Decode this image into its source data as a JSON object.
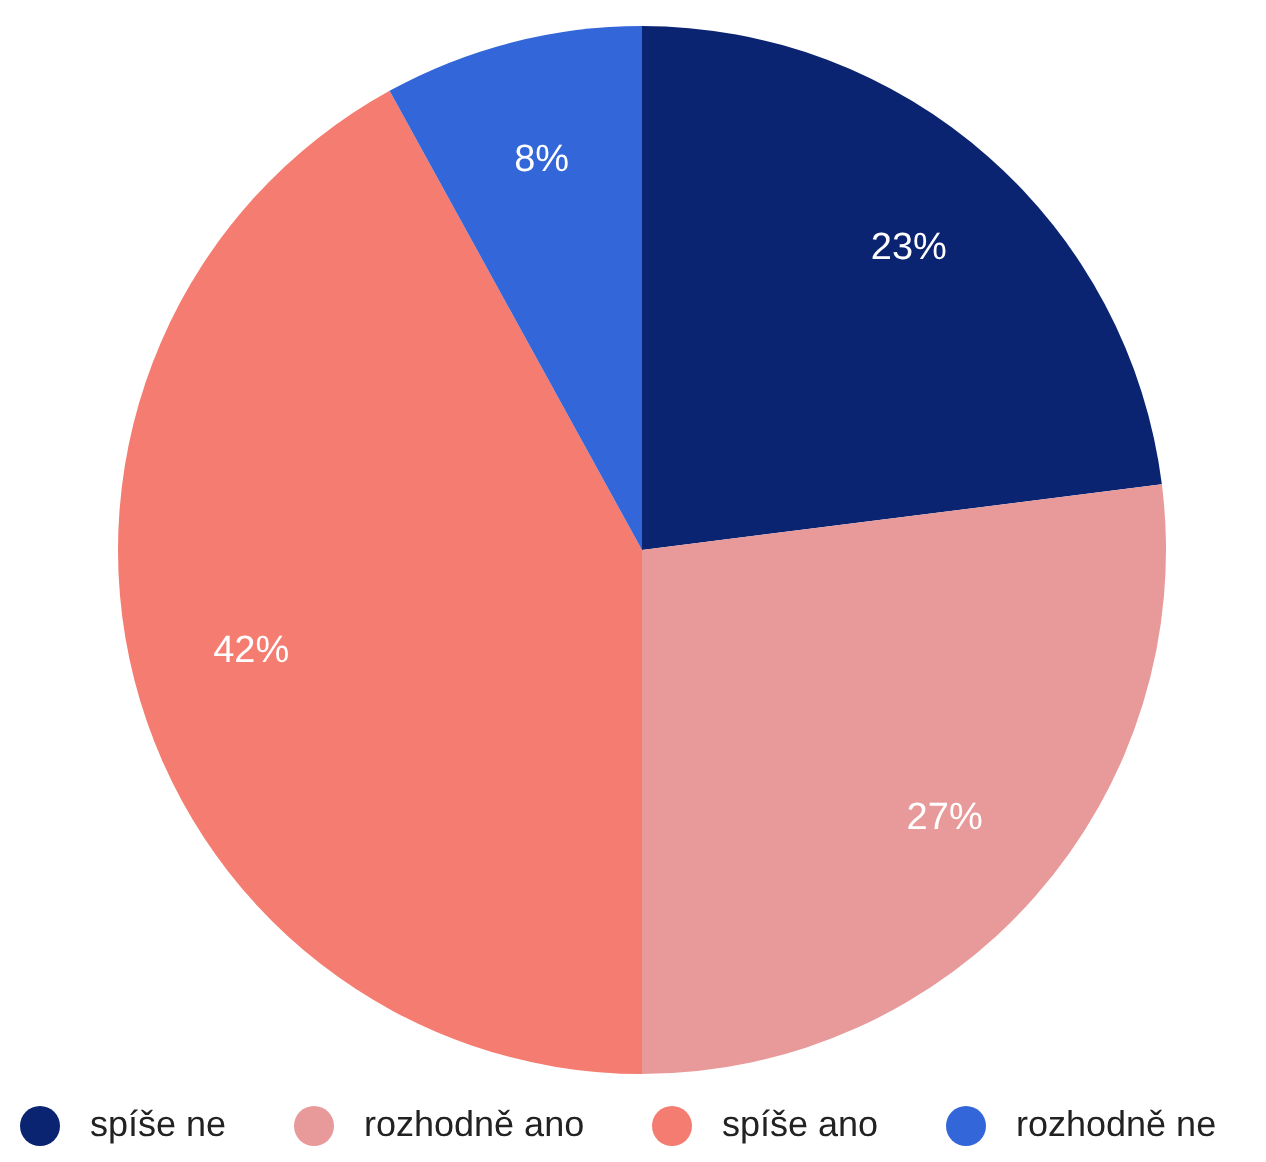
{
  "chart_data": {
    "type": "pie",
    "categories": [
      "spíše ne",
      "rozhodně ano",
      "spíše ano",
      "rozhodně ne"
    ],
    "values": [
      23,
      27,
      42,
      8
    ],
    "colors": [
      "#0a2472",
      "#e79a99",
      "#f57c70",
      "#3366d8"
    ],
    "value_labels": [
      "23%",
      "27%",
      "42%",
      "8%"
    ],
    "legend": "bottom"
  }
}
